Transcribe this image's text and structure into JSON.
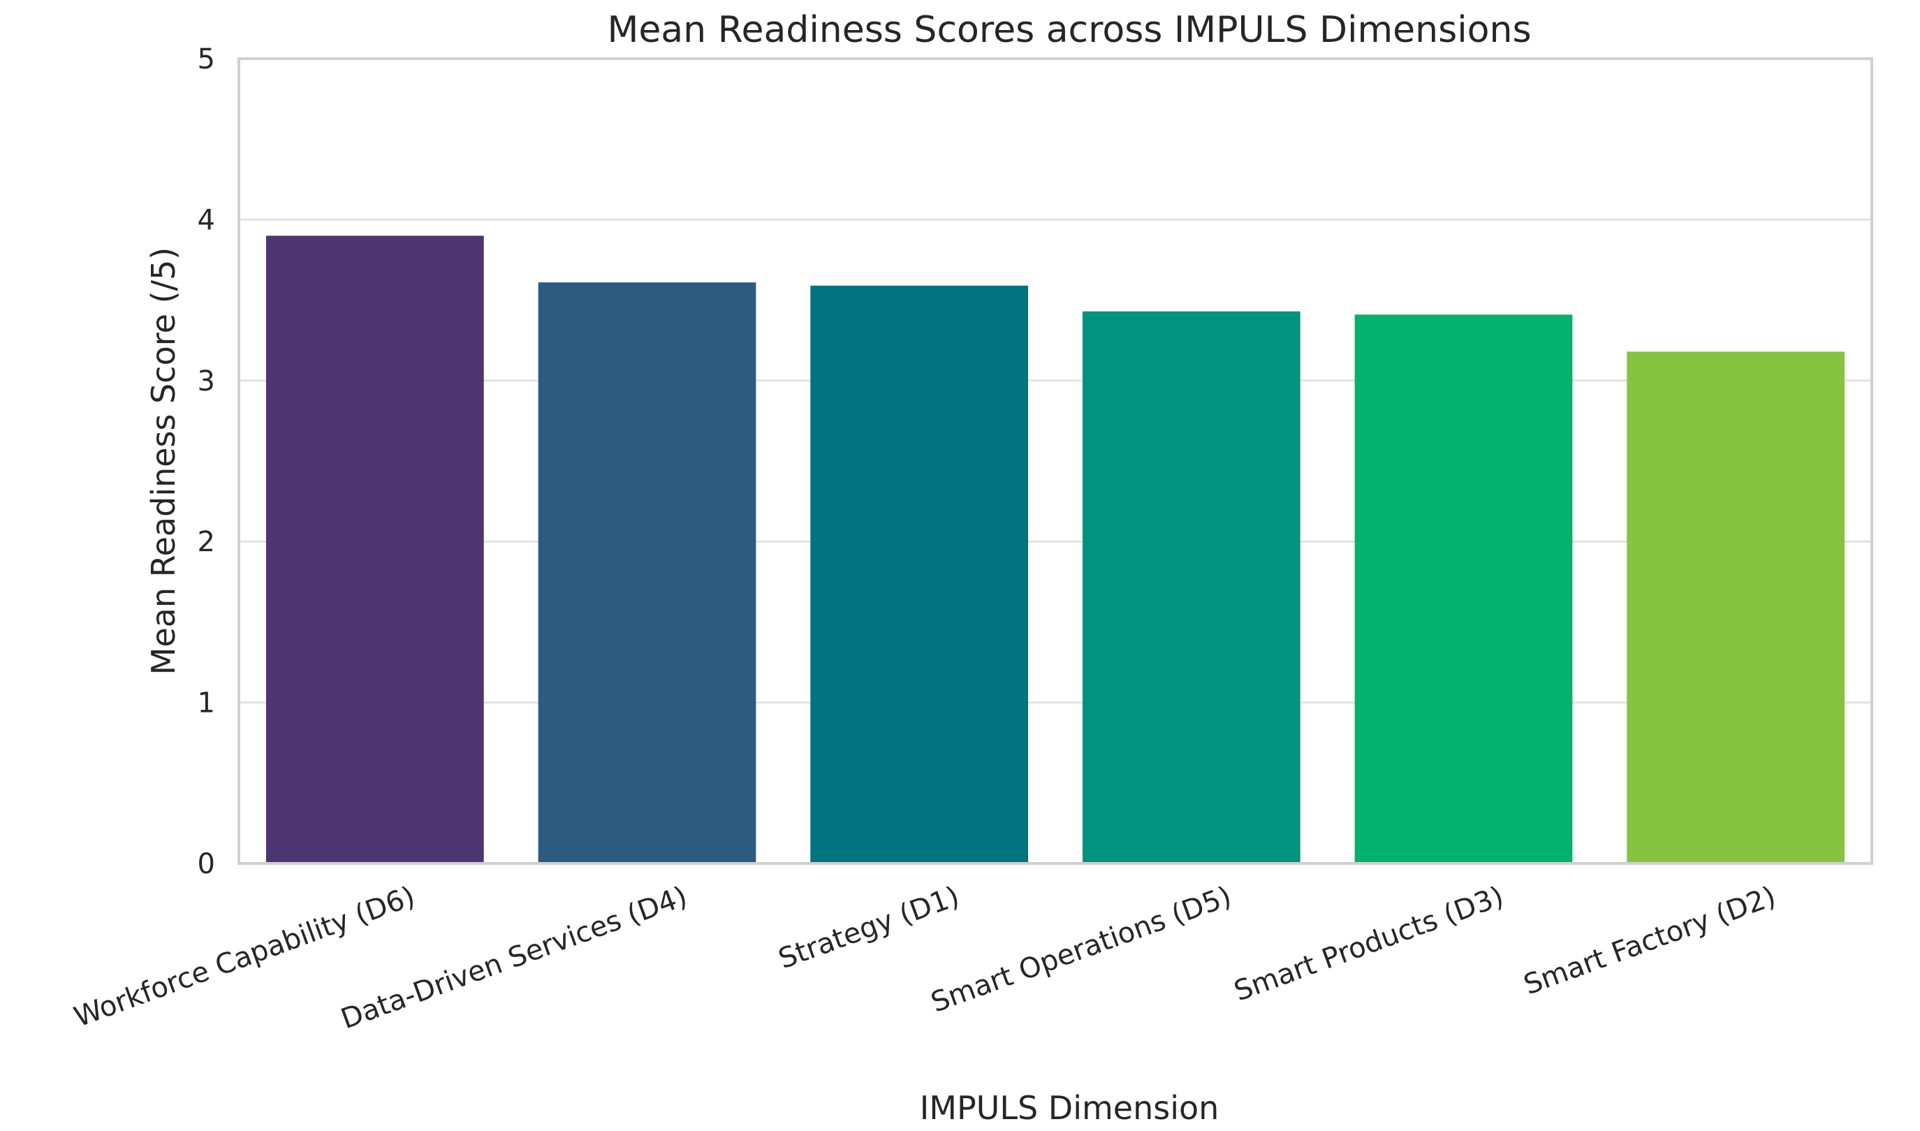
{
  "chart_data": {
    "type": "bar",
    "title": "Mean Readiness Scores across IMPULS Dimensions",
    "xlabel": "IMPULS Dimension",
    "ylabel": "Mean Readiness Score (/5)",
    "categories": [
      "Workforce Capability (D6)",
      "Data-Driven Services (D4)",
      "Strategy (D1)",
      "Smart Operations (D5)",
      "Smart Products (D3)",
      "Smart Factory (D2)"
    ],
    "values": [
      3.9,
      3.61,
      3.59,
      3.43,
      3.41,
      3.18
    ],
    "colors": [
      "#4c3572",
      "#2c5b82",
      "#007480",
      "#009380",
      "#01b26e",
      "#86c43f"
    ],
    "ylim": [
      0,
      5
    ],
    "yticks": [
      0,
      1,
      2,
      3,
      4,
      5
    ],
    "grid": "y",
    "legend": "none"
  }
}
